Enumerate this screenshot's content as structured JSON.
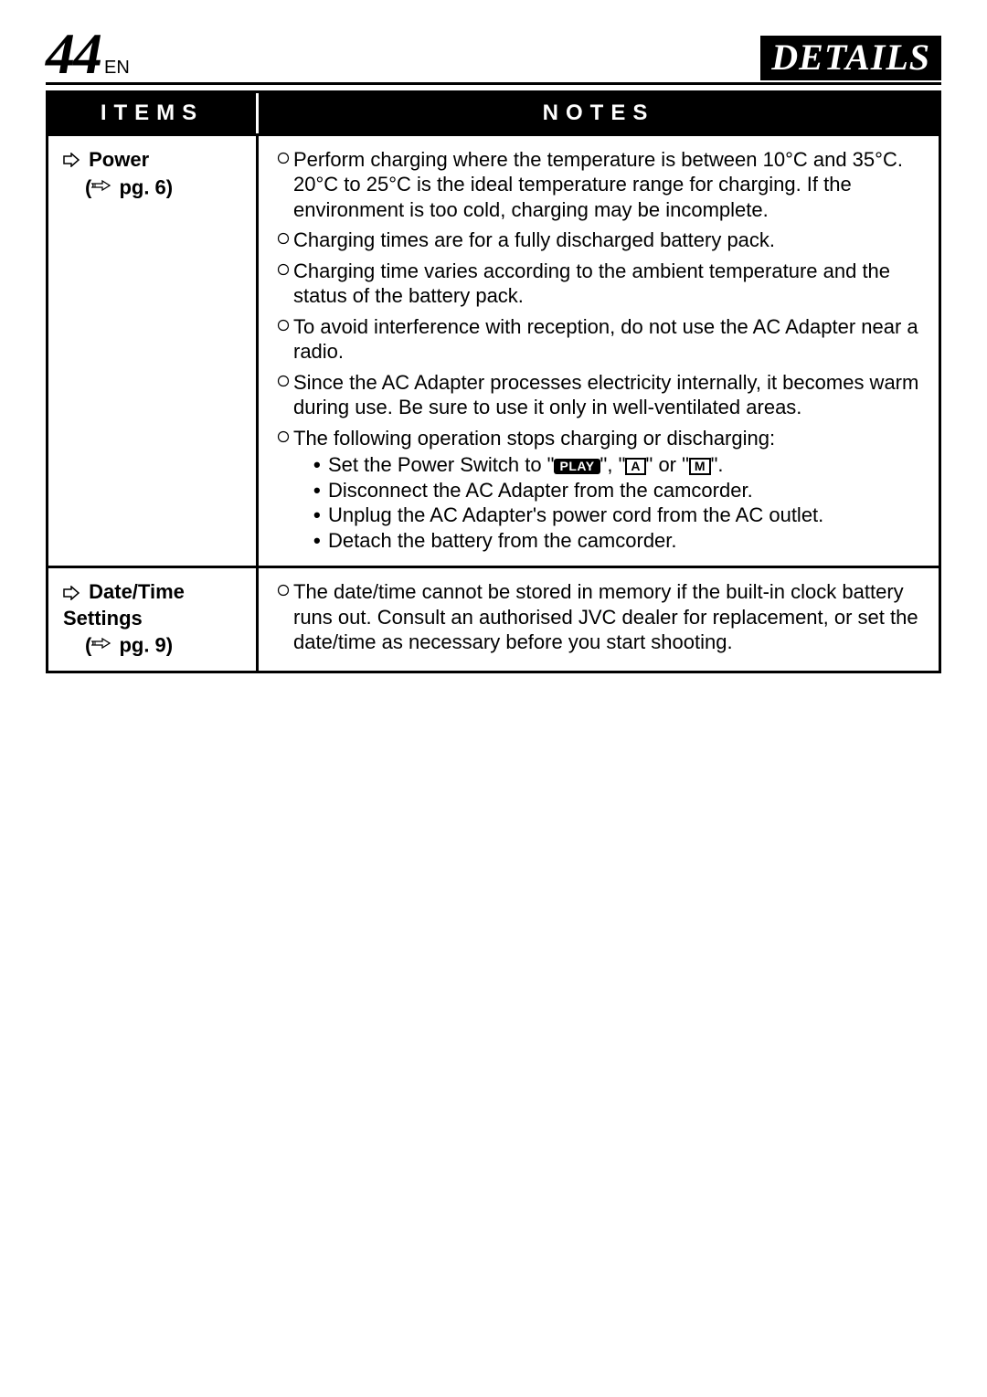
{
  "page": {
    "number": "44",
    "language": "EN",
    "section_title": "DETAILS"
  },
  "table": {
    "headers": {
      "items": "ITEMS",
      "notes": "NOTES"
    },
    "rows": [
      {
        "item": {
          "title": "Power",
          "ref_prefix": "(",
          "ref_pg": "pg. 6)",
          "ref_page_num": "6"
        },
        "notes": [
          {
            "type": "plain",
            "text": "Perform charging where the temperature is between 10°C and 35°C. 20°C to 25°C is the ideal temperature range for charging. If the environment is too cold, charging may be incomplete."
          },
          {
            "type": "plain",
            "text": "Charging times are for a fully discharged battery pack."
          },
          {
            "type": "plain",
            "text": "Charging time varies according to the ambient temperature and the status of the battery pack."
          },
          {
            "type": "plain",
            "text": "To avoid interference with reception, do not use the AC Adapter near a radio."
          },
          {
            "type": "plain",
            "text": "Since the AC Adapter processes electricity internally, it becomes warm during use. Be sure to use it only in well-ventilated areas."
          },
          {
            "type": "withsubs",
            "text": "The following operation stops charging or discharging:",
            "subs": [
              {
                "kind": "switch",
                "prefix": "Set the Power Switch to \"",
                "badges": [
                  "PLAY",
                  "A",
                  "M"
                ],
                "joiner1": "\", \"",
                "joiner2": "\" or \"",
                "suffix": "\"."
              },
              {
                "kind": "plain",
                "text": "Disconnect the AC Adapter from the camcorder."
              },
              {
                "kind": "plain",
                "text": "Unplug the AC Adapter's power cord from the AC outlet."
              },
              {
                "kind": "plain",
                "text": "Detach the battery from the camcorder."
              }
            ]
          }
        ]
      },
      {
        "item": {
          "title": "Date/Time Settings",
          "ref_prefix": "(",
          "ref_pg": "pg. 9)",
          "ref_page_num": "9"
        },
        "notes": [
          {
            "type": "plain",
            "text": "The date/time cannot be stored in memory if the built-in clock battery runs out. Consult an authorised JVC dealer for replacement, or set the date/time as necessary before you start shooting."
          }
        ]
      }
    ]
  },
  "style": {
    "marker_stroke": "#000000",
    "page_bg": "#ffffff"
  }
}
